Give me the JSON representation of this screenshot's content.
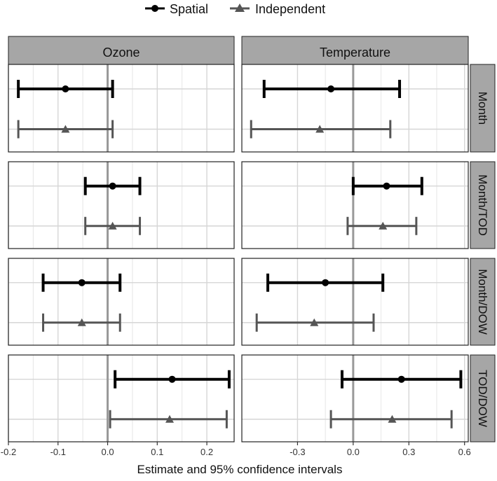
{
  "chart_data": {
    "type": "scatter",
    "subtype": "forest-plot-with-error-bars",
    "xlabel": "Estimate and 95% confidence intervals",
    "legend": {
      "position": "top",
      "entries": [
        {
          "name": "Spatial",
          "marker": "circle",
          "color": "#000000"
        },
        {
          "name": "Independent",
          "marker": "triangle",
          "color": "#555555"
        }
      ]
    },
    "columns": [
      "Ozone",
      "Temperature"
    ],
    "rows": [
      "Month",
      "Month/TOD",
      "Month/DOW",
      "TOD/DOW"
    ],
    "grid": true,
    "reference_line": 0,
    "axes": {
      "Ozone": {
        "xlim": [
          -0.2,
          0.255
        ],
        "ticks": [
          -0.2,
          -0.1,
          0.0,
          0.1,
          0.2
        ],
        "tick_labels": [
          "-0.2",
          "-0.1",
          "0.0",
          "0.1",
          "0.2"
        ]
      },
      "Temperature": {
        "xlim": [
          -0.6,
          0.62
        ],
        "ticks": [
          -0.3,
          0.0,
          0.3,
          0.6
        ],
        "tick_labels": [
          "-0.3",
          "0.0",
          "0.3",
          "0.6"
        ]
      }
    },
    "panels": [
      {
        "column": "Ozone",
        "row": "Month",
        "series": [
          {
            "name": "Spatial",
            "estimate": -0.085,
            "lower": -0.18,
            "upper": 0.01
          },
          {
            "name": "Independent",
            "estimate": -0.085,
            "lower": -0.18,
            "upper": 0.01
          }
        ]
      },
      {
        "column": "Temperature",
        "row": "Month",
        "series": [
          {
            "name": "Spatial",
            "estimate": -0.12,
            "lower": -0.48,
            "upper": 0.25
          },
          {
            "name": "Independent",
            "estimate": -0.18,
            "lower": -0.55,
            "upper": 0.2
          }
        ]
      },
      {
        "column": "Ozone",
        "row": "Month/TOD",
        "series": [
          {
            "name": "Spatial",
            "estimate": 0.01,
            "lower": -0.045,
            "upper": 0.065
          },
          {
            "name": "Independent",
            "estimate": 0.01,
            "lower": -0.045,
            "upper": 0.065
          }
        ]
      },
      {
        "column": "Temperature",
        "row": "Month/TOD",
        "series": [
          {
            "name": "Spatial",
            "estimate": 0.18,
            "lower": 0.0,
            "upper": 0.37
          },
          {
            "name": "Independent",
            "estimate": 0.16,
            "lower": -0.03,
            "upper": 0.34
          }
        ]
      },
      {
        "column": "Ozone",
        "row": "Month/DOW",
        "series": [
          {
            "name": "Spatial",
            "estimate": -0.052,
            "lower": -0.13,
            "upper": 0.025
          },
          {
            "name": "Independent",
            "estimate": -0.052,
            "lower": -0.13,
            "upper": 0.025
          }
        ]
      },
      {
        "column": "Temperature",
        "row": "Month/DOW",
        "series": [
          {
            "name": "Spatial",
            "estimate": -0.15,
            "lower": -0.46,
            "upper": 0.16
          },
          {
            "name": "Independent",
            "estimate": -0.21,
            "lower": -0.52,
            "upper": 0.11
          }
        ]
      },
      {
        "column": "Ozone",
        "row": "TOD/DOW",
        "series": [
          {
            "name": "Spatial",
            "estimate": 0.13,
            "lower": 0.015,
            "upper": 0.245
          },
          {
            "name": "Independent",
            "estimate": 0.125,
            "lower": 0.005,
            "upper": 0.24
          }
        ]
      },
      {
        "column": "Temperature",
        "row": "TOD/DOW",
        "series": [
          {
            "name": "Spatial",
            "estimate": 0.26,
            "lower": -0.06,
            "upper": 0.58
          },
          {
            "name": "Independent",
            "estimate": 0.21,
            "lower": -0.12,
            "upper": 0.53
          }
        ]
      }
    ]
  }
}
